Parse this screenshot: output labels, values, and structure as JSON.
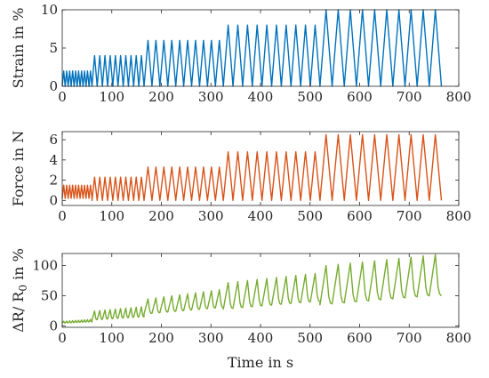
{
  "chart_data": [
    {
      "type": "line",
      "ylabel": "Strain in %",
      "xlim": [
        0,
        800
      ],
      "ylim": [
        0,
        10
      ],
      "xticks": [
        0,
        100,
        200,
        300,
        400,
        500,
        600,
        700,
        800
      ],
      "yticks": [
        0,
        5,
        10
      ],
      "color": "#0072BD",
      "segments": [
        {
          "t0": 0,
          "t1": 60,
          "cycles": 10,
          "amp": 2,
          "base": 0
        },
        {
          "t0": 60,
          "t1": 165,
          "cycles": 10,
          "amp": 4,
          "base": 0
        },
        {
          "t0": 165,
          "t1": 325,
          "cycles": 10,
          "amp": 6,
          "base": 0
        },
        {
          "t0": 325,
          "t1": 520,
          "cycles": 10,
          "amp": 8,
          "base": 0
        },
        {
          "t0": 520,
          "t1": 765,
          "cycles": 10,
          "amp": 10,
          "base": 0
        }
      ]
    },
    {
      "type": "line",
      "ylabel": "Force in N",
      "xlim": [
        0,
        800
      ],
      "ylim": [
        -0.5,
        6.8
      ],
      "xticks": [
        0,
        100,
        200,
        300,
        400,
        500,
        600,
        700,
        800
      ],
      "yticks": [
        0,
        2,
        4,
        6
      ],
      "color": "#D95319",
      "segments": [
        {
          "t0": 0,
          "t1": 60,
          "cycles": 10,
          "amp": 1.3,
          "base": 0.2
        },
        {
          "t0": 60,
          "t1": 165,
          "cycles": 10,
          "amp": 2.3,
          "base": 0
        },
        {
          "t0": 165,
          "t1": 325,
          "cycles": 10,
          "amp": 3.3,
          "base": 0
        },
        {
          "t0": 325,
          "t1": 520,
          "cycles": 10,
          "amp": 4.8,
          "base": 0
        },
        {
          "t0": 520,
          "t1": 765,
          "cycles": 10,
          "amp": 6.5,
          "base": 0
        }
      ]
    },
    {
      "type": "line",
      "ylabel": "ΔR/ R",
      "ylabel_sub": "0",
      "ylabel_suffix": " in %",
      "xlabel": "Time in s",
      "xlim": [
        0,
        800
      ],
      "ylim": [
        -2,
        120
      ],
      "xticks": [
        0,
        100,
        200,
        300,
        400,
        500,
        600,
        700,
        800
      ],
      "yticks": [
        0,
        50,
        100
      ],
      "color": "#77AC30",
      "segments": [
        {
          "t0": 0,
          "t1": 60,
          "cycles": 10,
          "peak0": 8,
          "peak1": 11,
          "trough0": 5,
          "trough1": 7
        },
        {
          "t0": 60,
          "t1": 165,
          "cycles": 10,
          "peak0": 25,
          "peak1": 32,
          "trough0": 10,
          "trough1": 15
        },
        {
          "t0": 165,
          "t1": 325,
          "cycles": 10,
          "peak0": 45,
          "peak1": 60,
          "trough0": 20,
          "trough1": 30
        },
        {
          "t0": 325,
          "t1": 520,
          "cycles": 10,
          "peak0": 72,
          "peak1": 87,
          "trough0": 28,
          "trough1": 40
        },
        {
          "t0": 520,
          "t1": 765,
          "cycles": 10,
          "peak0": 100,
          "peak1": 118,
          "trough0": 35,
          "trough1": 50
        }
      ]
    }
  ]
}
